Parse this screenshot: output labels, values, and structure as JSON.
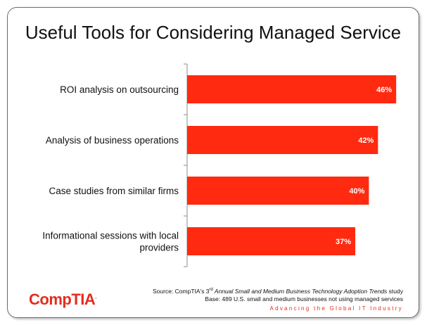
{
  "chart_data": {
    "type": "bar",
    "orientation": "horizontal",
    "title": "Useful Tools for Considering Managed Service",
    "categories": [
      "ROI analysis on outsourcing",
      "Analysis of business operations",
      "Case studies from similar firms",
      "Informational sessions with local providers"
    ],
    "values": [
      46,
      42,
      40,
      37
    ],
    "value_labels": [
      "46%",
      "42%",
      "40%",
      "37%"
    ],
    "xlim": [
      0,
      50
    ],
    "grid": false,
    "bar_color": "#ff2a10"
  },
  "footer": {
    "source_prefix": "Source: CompTIA's 3",
    "source_sup": "rd",
    "source_italic": " Annual Small and Medium Business Technology Adoption Trends",
    "source_suffix": " study",
    "base": "Base: 489 U.S. small and medium businesses not using managed services",
    "tagline": "Advancing the Global IT Industry"
  },
  "logo": {
    "text": "CompTIA",
    "mark": "."
  }
}
